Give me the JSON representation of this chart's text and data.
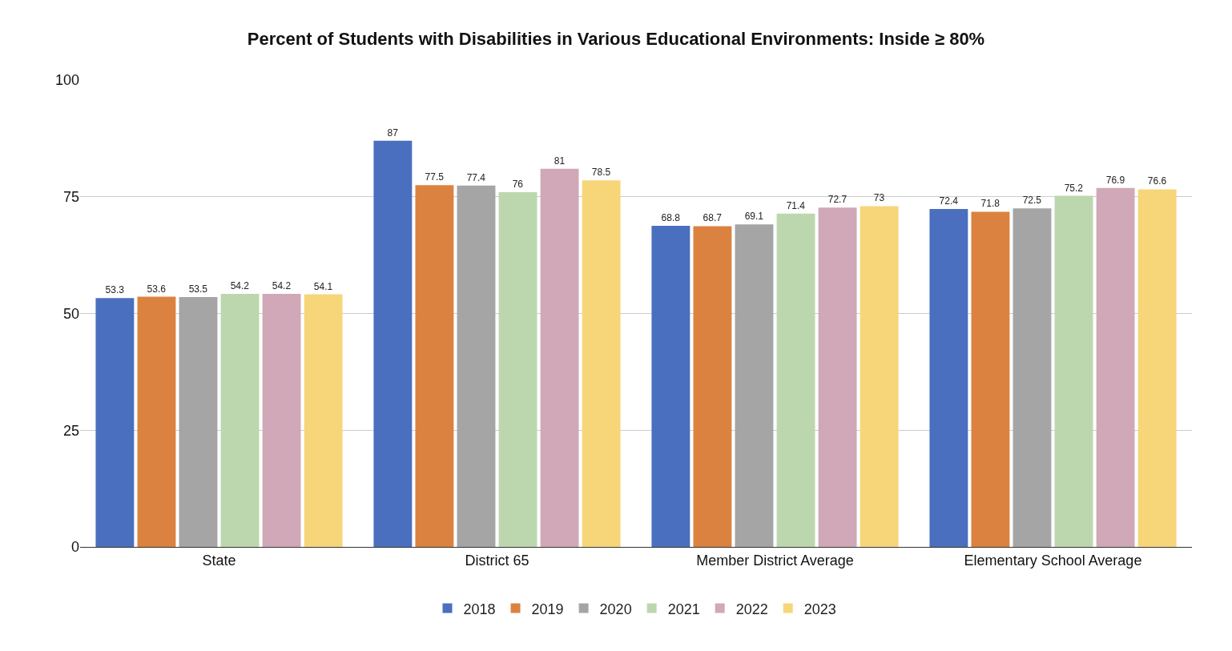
{
  "chart_data": {
    "type": "bar",
    "title": "Percent of Students with Disabilities in Various Educational Environments: Inside ≥ 80%",
    "categories": [
      "State",
      "District 65",
      "Member District Average",
      "Elementary School Average"
    ],
    "series": [
      {
        "name": "2018",
        "color": "#4a6fbe",
        "values": [
          53.3,
          87,
          68.8,
          72.4
        ]
      },
      {
        "name": "2019",
        "color": "#dc8240",
        "values": [
          53.6,
          77.5,
          68.7,
          71.8
        ]
      },
      {
        "name": "2020",
        "color": "#a5a5a5",
        "values": [
          53.5,
          77.4,
          69.1,
          72.5
        ]
      },
      {
        "name": "2021",
        "color": "#bcd7ae",
        "values": [
          54.2,
          76,
          71.4,
          75.2
        ]
      },
      {
        "name": "2022",
        "color": "#d0a8b8",
        "values": [
          54.2,
          81,
          72.7,
          76.9
        ]
      },
      {
        "name": "2023",
        "color": "#f7d67a",
        "values": [
          54.1,
          78.5,
          73,
          76.6
        ]
      }
    ],
    "ylim": [
      0,
      100
    ],
    "yticks": [
      0,
      25,
      50,
      75,
      100
    ],
    "grid": "y",
    "legend": "bottom",
    "data_labels": true
  }
}
